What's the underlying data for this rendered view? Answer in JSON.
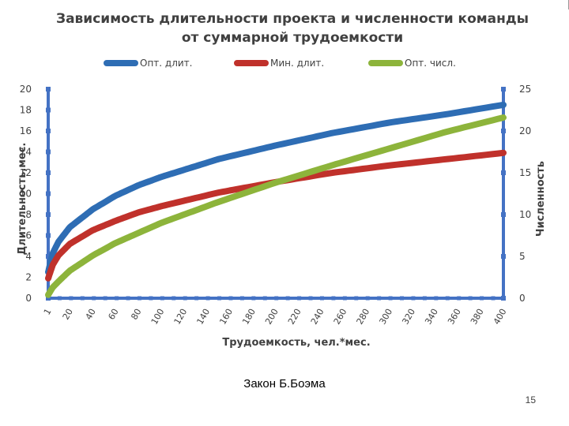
{
  "slide": {
    "caption": "Закон Б.Боэма",
    "page_number": "15"
  },
  "chart_data": {
    "type": "line",
    "title_line1": "Зависимость длительности проекта и численности команды",
    "title_line2": "от суммарной трудоемкости",
    "xlabel": "Трудоемкость, чел.*мес.",
    "ylabel_left": "Длительность,мес.",
    "ylabel_right": "Численность",
    "x_ticks": [
      "1",
      "20",
      "40",
      "60",
      "80",
      "100",
      "120",
      "140",
      "160",
      "180",
      "200",
      "220",
      "240",
      "260",
      "280",
      "300",
      "320",
      "340",
      "360",
      "380",
      "400"
    ],
    "x_range": [
      1,
      400
    ],
    "y_left_ticks": [
      "0",
      "2",
      "4",
      "6",
      "8",
      "10",
      "12",
      "14",
      "16",
      "18",
      "20"
    ],
    "y_left_range": [
      0,
      20
    ],
    "y_right_ticks": [
      "0",
      "5",
      "10",
      "15",
      "20",
      "25"
    ],
    "y_right_range": [
      0,
      25
    ],
    "legend_position": "top",
    "grid": false,
    "series": [
      {
        "name": "Опт. длит.",
        "axis": "left",
        "color": "#2E6DB4",
        "x": [
          1,
          5,
          10,
          20,
          40,
          60,
          80,
          100,
          150,
          200,
          250,
          300,
          350,
          400
        ],
        "values": [
          2.5,
          4.3,
          5.4,
          6.8,
          8.5,
          9.8,
          10.8,
          11.6,
          13.3,
          14.6,
          15.8,
          16.8,
          17.6,
          18.5
        ]
      },
      {
        "name": "Мин. длит.",
        "axis": "left",
        "color": "#C0312B",
        "x": [
          1,
          5,
          10,
          20,
          40,
          60,
          80,
          100,
          150,
          200,
          250,
          300,
          350,
          400
        ],
        "values": [
          1.9,
          3.2,
          4.1,
          5.2,
          6.5,
          7.4,
          8.2,
          8.8,
          10.1,
          11.1,
          12.0,
          12.7,
          13.3,
          13.9
        ]
      },
      {
        "name": "Опт. числ.",
        "axis": "right",
        "color": "#8DB43B",
        "x": [
          1,
          5,
          10,
          20,
          40,
          60,
          80,
          100,
          150,
          200,
          250,
          300,
          350,
          400
        ],
        "values": [
          0.4,
          1.3,
          2.0,
          3.3,
          5.1,
          6.6,
          7.8,
          9.0,
          11.5,
          13.8,
          15.9,
          17.9,
          19.9,
          21.6
        ]
      }
    ]
  }
}
